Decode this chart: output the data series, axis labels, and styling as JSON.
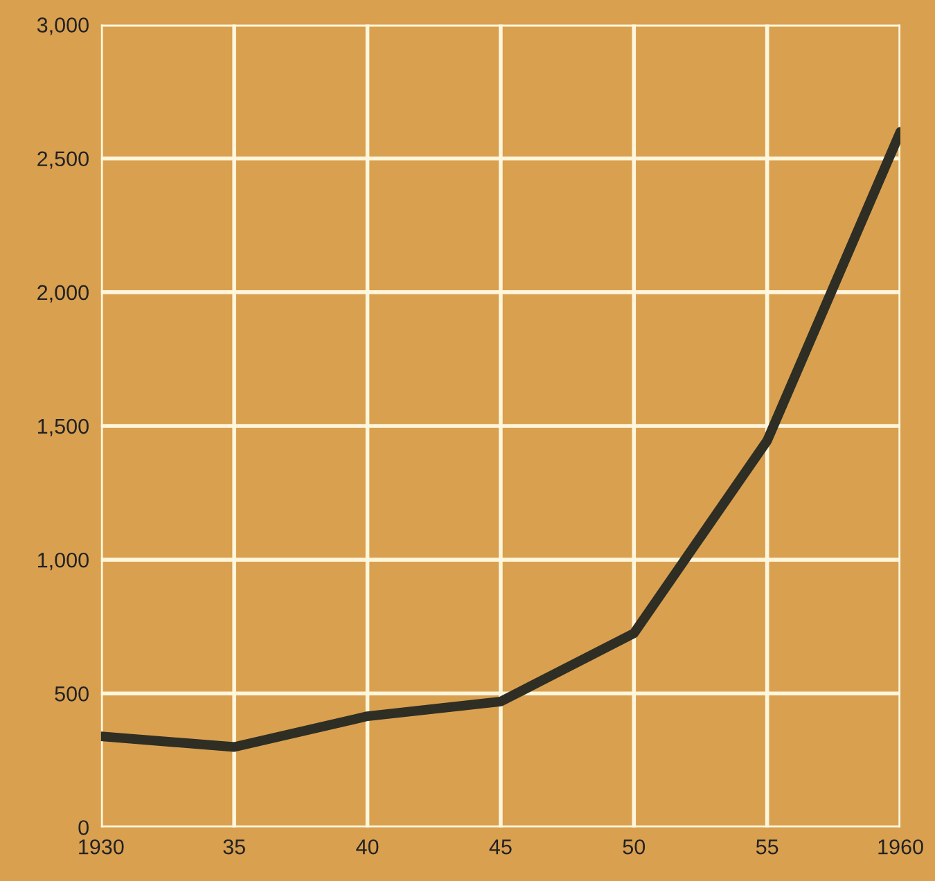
{
  "chart_data": {
    "type": "line",
    "x": [
      1930,
      1935,
      1940,
      1945,
      1950,
      1955,
      1960
    ],
    "series": [
      {
        "color": "#2e2e24",
        "values": [
          340,
          300,
          415,
          470,
          725,
          1445,
          2600
        ]
      }
    ],
    "xlim": [
      1930,
      1960
    ],
    "xticks": [
      1930,
      {
        "value": 1935,
        "label": "35"
      },
      {
        "value": 1940,
        "label": "40"
      },
      {
        "value": 1945,
        "label": "45"
      },
      {
        "value": 1950,
        "label": "50"
      },
      {
        "value": 1955,
        "label": "55"
      },
      1960
    ],
    "ylim": [
      0,
      3000
    ],
    "yticks": [
      0,
      {
        "value": 500,
        "label": "500"
      },
      {
        "value": 1000,
        "label": "1,000"
      },
      {
        "value": 1500,
        "label": "1,500"
      },
      {
        "value": 2000,
        "label": "2,000"
      },
      {
        "value": 2500,
        "label": "2,500"
      },
      {
        "value": 3000,
        "label": "3,000"
      }
    ],
    "grid": true,
    "marker": "none",
    "line_style": "solid"
  }
}
